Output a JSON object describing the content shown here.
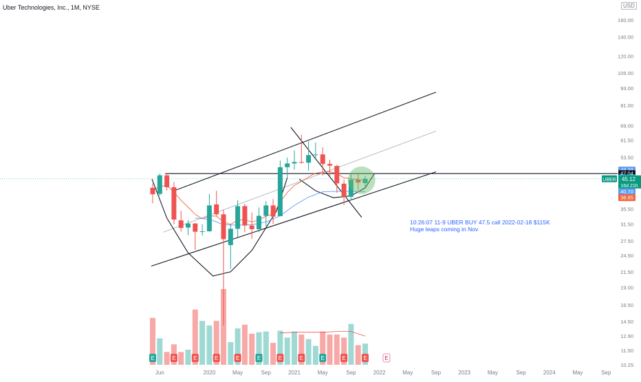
{
  "title": "Uber Technologies, Inc., 1M, NYSE",
  "currency": "USD",
  "symbol_tag": "UBER",
  "countdown": "16d 21h",
  "annotation_line1": "10:26:07 11-9 UBER BUY 47.5 call 2022-02-18 $115K",
  "annotation_line2": "Huge leaps coming in Nov",
  "colors": {
    "up": "#26a69a",
    "down": "#ef5350",
    "vol_up": "#9fd9d3",
    "vol_down": "#f7a9a7"
  },
  "chart_data": {
    "type": "candlestick",
    "y_scale": "log",
    "price_axis_ticks": [
      "160.00",
      "140.00",
      "120.00",
      "105.00",
      "93.00",
      "81.00",
      "69.00",
      "61.50",
      "53.50",
      "47.00",
      "41.00",
      "35.50",
      "31.50",
      "27.50",
      "24.50",
      "21.50",
      "19.00",
      "16.50",
      "14.50",
      "12.90",
      "11.50",
      "10.25"
    ],
    "x_ticks": [
      {
        "label": "Jun",
        "date": "2019-06"
      },
      {
        "label": "2020",
        "date": "2020-01"
      },
      {
        "label": "May",
        "date": "2020-05"
      },
      {
        "label": "Sep",
        "date": "2020-09"
      },
      {
        "label": "2021",
        "date": "2021-01"
      },
      {
        "label": "May",
        "date": "2021-05"
      },
      {
        "label": "Sep",
        "date": "2021-09"
      },
      {
        "label": "2022",
        "date": "2022-01"
      },
      {
        "label": "May",
        "date": "2022-05"
      },
      {
        "label": "Sep",
        "date": "2022-09"
      },
      {
        "label": "2023",
        "date": "2023-01"
      },
      {
        "label": "May",
        "date": "2023-05"
      },
      {
        "label": "Sep",
        "date": "2023-09"
      },
      {
        "label": "2024",
        "date": "2024-01"
      },
      {
        "label": "May",
        "date": "2024-05"
      },
      {
        "label": "Sep",
        "date": "2024-09"
      }
    ],
    "candles": [
      {
        "date": "2019-05",
        "o": 42.0,
        "h": 43.5,
        "l": 37.1,
        "c": 39.9
      },
      {
        "date": "2019-06",
        "o": 40.0,
        "h": 47.1,
        "l": 39.4,
        "c": 46.4
      },
      {
        "date": "2019-07",
        "o": 46.4,
        "h": 47.1,
        "l": 41.1,
        "c": 42.2
      },
      {
        "date": "2019-08",
        "o": 42.2,
        "h": 44.0,
        "l": 31.4,
        "c": 32.6
      },
      {
        "date": "2019-09",
        "o": 32.4,
        "h": 35.0,
        "l": 29.6,
        "c": 30.5
      },
      {
        "date": "2019-10",
        "o": 30.6,
        "h": 32.5,
        "l": 28.8,
        "c": 31.6
      },
      {
        "date": "2019-11",
        "o": 31.6,
        "h": 31.8,
        "l": 25.6,
        "c": 29.6
      },
      {
        "date": "2019-12",
        "o": 29.6,
        "h": 31.4,
        "l": 28.7,
        "c": 29.7
      },
      {
        "date": "2020-01",
        "o": 29.7,
        "h": 40.0,
        "l": 29.6,
        "c": 36.5
      },
      {
        "date": "2020-02",
        "o": 36.8,
        "h": 41.0,
        "l": 33.4,
        "c": 34.0
      },
      {
        "date": "2020-03",
        "o": 34.0,
        "h": 35.3,
        "l": 14.0,
        "c": 27.9
      },
      {
        "date": "2020-04",
        "o": 26.6,
        "h": 31.4,
        "l": 22.0,
        "c": 30.3
      },
      {
        "date": "2020-05",
        "o": 30.3,
        "h": 38.1,
        "l": 28.3,
        "c": 36.3
      },
      {
        "date": "2020-06",
        "o": 36.3,
        "h": 37.0,
        "l": 29.5,
        "c": 31.1
      },
      {
        "date": "2020-07",
        "o": 31.1,
        "h": 34.5,
        "l": 28.0,
        "c": 30.2
      },
      {
        "date": "2020-08",
        "o": 30.2,
        "h": 35.9,
        "l": 29.5,
        "c": 33.6
      },
      {
        "date": "2020-09",
        "o": 33.6,
        "h": 37.8,
        "l": 30.9,
        "c": 36.5
      },
      {
        "date": "2020-10",
        "o": 36.5,
        "h": 38.4,
        "l": 31.5,
        "c": 33.4
      },
      {
        "date": "2020-11",
        "o": 33.5,
        "h": 52.2,
        "l": 33.5,
        "c": 49.5
      },
      {
        "date": "2020-12",
        "o": 49.5,
        "h": 53.4,
        "l": 45.5,
        "c": 51.0
      },
      {
        "date": "2021-01",
        "o": 51.0,
        "h": 56.6,
        "l": 48.6,
        "c": 51.6
      },
      {
        "date": "2021-02",
        "o": 51.6,
        "h": 64.1,
        "l": 50.9,
        "c": 51.3
      },
      {
        "date": "2021-03",
        "o": 51.3,
        "h": 60.8,
        "l": 48.1,
        "c": 54.5
      },
      {
        "date": "2021-04",
        "o": 54.5,
        "h": 60.2,
        "l": 53.0,
        "c": 54.8
      },
      {
        "date": "2021-05",
        "o": 54.8,
        "h": 58.0,
        "l": 46.3,
        "c": 50.8
      },
      {
        "date": "2021-06",
        "o": 50.8,
        "h": 52.5,
        "l": 46.2,
        "c": 50.1
      },
      {
        "date": "2021-07",
        "o": 50.0,
        "h": 50.4,
        "l": 40.4,
        "c": 43.5
      },
      {
        "date": "2021-08",
        "o": 43.4,
        "h": 44.8,
        "l": 36.6,
        "c": 39.1
      },
      {
        "date": "2021-09",
        "o": 39.1,
        "h": 47.0,
        "l": 38.0,
        "c": 44.8
      },
      {
        "date": "2021-10",
        "o": 44.8,
        "h": 47.0,
        "l": 41.3,
        "c": 43.8
      },
      {
        "date": "2021-11",
        "o": 43.6,
        "h": 46.2,
        "l": 42.0,
        "c": 45.1
      }
    ],
    "volume_relative": [
      0.62,
      0.35,
      0.17,
      0.27,
      0.17,
      0.2,
      0.73,
      0.58,
      0.52,
      0.58,
      1.0,
      0.3,
      0.48,
      0.53,
      0.41,
      0.43,
      0.44,
      0.29,
      0.45,
      0.36,
      0.44,
      0.4,
      0.34,
      0.25,
      0.44,
      0.4,
      0.4,
      0.36,
      0.54,
      0.26,
      0.28
    ],
    "earnings_markers": [
      {
        "date": "2019-05",
        "kind": "E"
      },
      {
        "date": "2019-08",
        "kind": "E"
      },
      {
        "date": "2019-11",
        "kind": "E"
      },
      {
        "date": "2020-02",
        "kind": "E"
      },
      {
        "date": "2020-05",
        "kind": "E"
      },
      {
        "date": "2020-08",
        "kind": "E"
      },
      {
        "date": "2020-11",
        "kind": "E"
      },
      {
        "date": "2021-02",
        "kind": "E"
      },
      {
        "date": "2021-05",
        "kind": "E"
      },
      {
        "date": "2021-08",
        "kind": "E"
      },
      {
        "date": "2021-11",
        "kind": "E"
      },
      {
        "date": "2022-02",
        "kind": "E",
        "future": true
      }
    ],
    "price_labels": [
      {
        "id": "blue-top",
        "text": "48.38",
        "value": 48.38,
        "color": "#5b9cf6"
      },
      {
        "id": "black",
        "text": "47.04",
        "value": 47.04,
        "color": "#131722"
      },
      {
        "id": "teal-top",
        "text": "45.41",
        "value": 45.41,
        "color": "#26c6da"
      },
      {
        "id": "blue-bottom",
        "text": "40.70",
        "value": 40.7,
        "color": "#5b9cf6"
      },
      {
        "id": "red",
        "text": "38.85",
        "value": 38.85,
        "color": "#f0673c"
      }
    ],
    "last_price": {
      "text": "45.12",
      "value": 45.12,
      "color": "#089981"
    }
  }
}
